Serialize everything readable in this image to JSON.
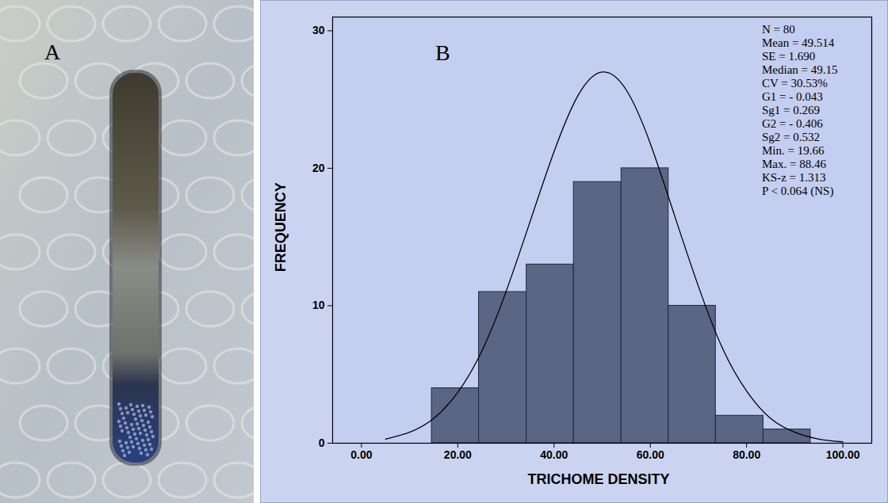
{
  "photo": {
    "panel_label": "A"
  },
  "chart_data": {
    "type": "histogram",
    "panel_label": "B",
    "x_label": "TRICHOME DENSITY",
    "y_label": "FREQUENCY",
    "bins": [
      14.6,
      24.4,
      34.3,
      44.1,
      54.0,
      63.8,
      73.6,
      83.5,
      93.3
    ],
    "counts": [
      4,
      11,
      13,
      19,
      20,
      10,
      2,
      1
    ],
    "color": "#5b6584",
    "normal_curve": {
      "x": [
        5,
        10,
        15,
        20,
        25,
        30,
        35,
        40,
        45,
        50,
        55,
        60,
        65,
        70,
        75,
        80,
        85,
        90,
        95,
        100
      ],
      "y": [
        0.3,
        0.8,
        1.8,
        3.7,
        6.7,
        11,
        16.1,
        21.2,
        25.3,
        27,
        25.7,
        21.8,
        16.6,
        11.4,
        6.9,
        3.8,
        1.8,
        0.8,
        0.3,
        0.1
      ]
    },
    "stats": [
      "N = 80",
      "Mean = 49.514",
      "SE = 1.690",
      "Median = 49.15",
      "CV = 30.53%",
      "G1 = - 0.043",
      "Sg1 = 0.269",
      "G2 = - 0.406",
      "Sg2 = 0.532",
      "Min. = 19.66",
      "Max. = 88.46",
      "KS-z = 1.313",
      "P < 0.064 (NS)"
    ],
    "xlim": [
      -6,
      106
    ],
    "xticks": [
      {
        "value": 0,
        "label": "0.00"
      },
      {
        "value": 20,
        "label": "20.00"
      },
      {
        "value": 40,
        "label": "40.00"
      },
      {
        "value": 60,
        "label": "60.00"
      },
      {
        "value": 80,
        "label": "80.00"
      },
      {
        "value": 100,
        "label": "100.00"
      }
    ],
    "ylim": [
      0,
      31
    ],
    "yticks": [
      0,
      10,
      20,
      30
    ]
  }
}
